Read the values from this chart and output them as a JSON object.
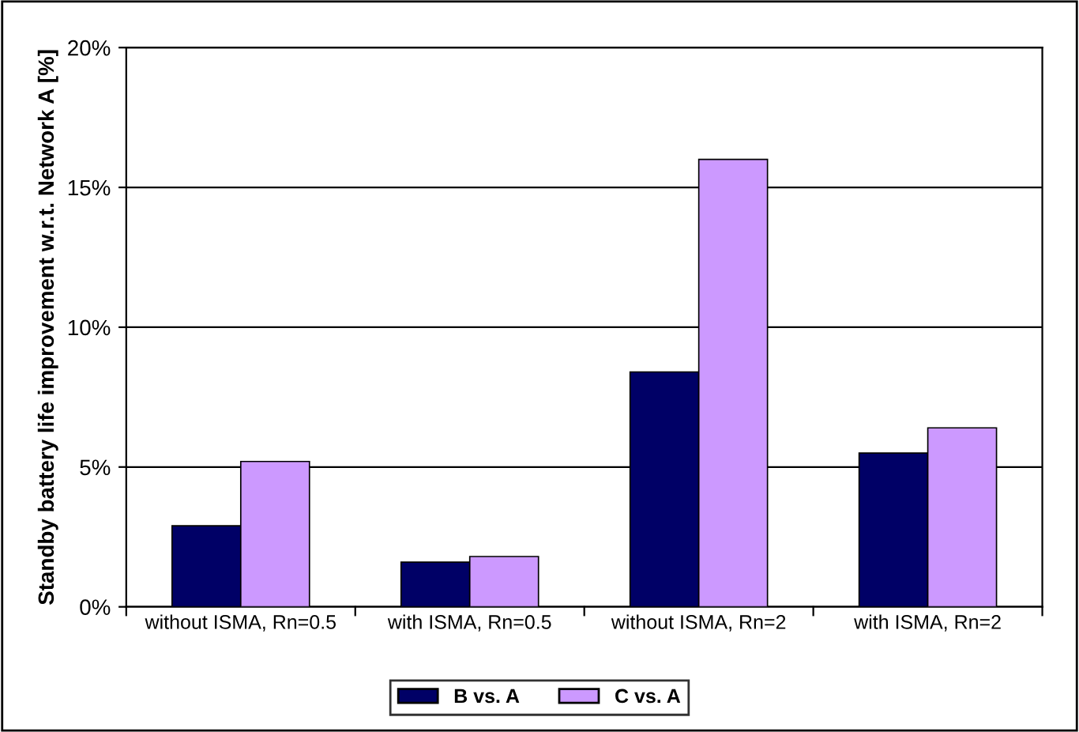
{
  "chart_data": {
    "type": "bar",
    "ylabel": "Standby battery life improvement w.r.t. Network A [%]",
    "categories": [
      "without ISMA, Rn=0.5",
      "with ISMA, Rn=0.5",
      "without ISMA, Rn=2",
      "with ISMA, Rn=2"
    ],
    "series": [
      {
        "name": "B vs. A",
        "color": "#000066",
        "values": [
          2.9,
          1.6,
          8.4,
          5.5
        ]
      },
      {
        "name": "C vs. A",
        "color": "#cc99ff",
        "values": [
          5.2,
          1.8,
          16.0,
          6.4
        ]
      }
    ],
    "ylim": [
      0,
      20
    ],
    "yticks": [
      {
        "value": 0,
        "label": "0%"
      },
      {
        "value": 5,
        "label": "5%"
      },
      {
        "value": 10,
        "label": "10%"
      },
      {
        "value": 15,
        "label": "15%"
      },
      {
        "value": 20,
        "label": "20%"
      }
    ],
    "grid": "y",
    "legend": "bottom"
  }
}
